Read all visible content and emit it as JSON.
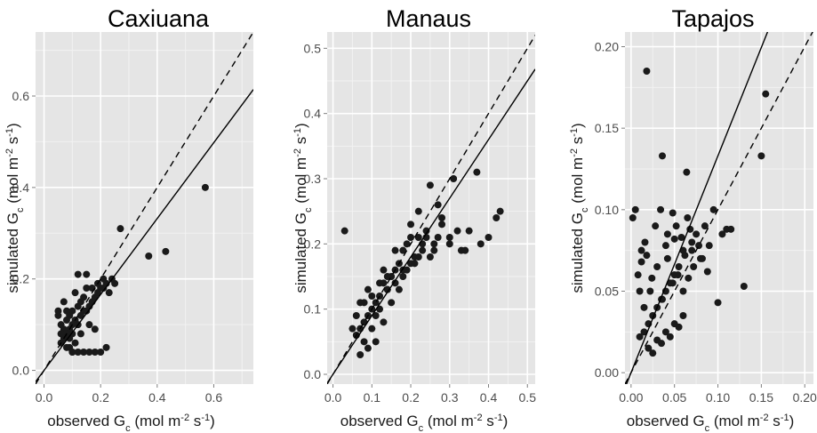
{
  "chart_data": [
    {
      "type": "scatter",
      "title": "Caxiuana",
      "xlabel": "observed G_c (mol m^-2 s^-1)",
      "ylabel": "simulated G_c (mol m^-2 s^-1)",
      "xlim": [
        -0.03,
        0.74
      ],
      "ylim": [
        -0.03,
        0.74
      ],
      "x_ticks": [
        0.0,
        0.2,
        0.4,
        0.6
      ],
      "x_tick_labels": [
        "0.0",
        "0.2",
        "0.4",
        "0.6"
      ],
      "y_ticks": [
        0.0,
        0.2,
        0.4,
        0.6
      ],
      "y_tick_labels": [
        "0.0",
        "0.2",
        "0.4",
        "0.6"
      ],
      "grid": true,
      "lines": [
        {
          "style": "dashed",
          "label": "1:1",
          "slope": 1.0,
          "intercept": 0.0
        },
        {
          "style": "solid",
          "label": "fit",
          "slope": 0.83,
          "intercept": 0.0
        }
      ],
      "x": [
        0.57,
        0.43,
        0.37,
        0.27,
        0.24,
        0.22,
        0.21,
        0.19,
        0.18,
        0.17,
        0.16,
        0.15,
        0.14,
        0.13,
        0.12,
        0.11,
        0.1,
        0.09,
        0.08,
        0.07,
        0.06,
        0.05,
        0.06,
        0.08,
        0.1,
        0.12,
        0.14,
        0.16,
        0.18,
        0.2,
        0.22,
        0.14,
        0.12,
        0.1,
        0.09,
        0.08,
        0.07,
        0.11,
        0.13,
        0.15,
        0.17,
        0.19,
        0.21,
        0.23,
        0.09,
        0.1,
        0.11,
        0.12,
        0.13,
        0.08,
        0.07,
        0.09,
        0.1,
        0.06,
        0.05,
        0.16,
        0.18,
        0.2,
        0.25,
        0.15
      ],
      "y": [
        0.4,
        0.26,
        0.25,
        0.31,
        0.2,
        0.19,
        0.18,
        0.17,
        0.16,
        0.15,
        0.14,
        0.18,
        0.13,
        0.12,
        0.21,
        0.11,
        0.1,
        0.09,
        0.08,
        0.07,
        0.1,
        0.12,
        0.06,
        0.05,
        0.04,
        0.04,
        0.04,
        0.04,
        0.04,
        0.04,
        0.05,
        0.16,
        0.14,
        0.13,
        0.12,
        0.11,
        0.09,
        0.17,
        0.15,
        0.13,
        0.18,
        0.19,
        0.2,
        0.17,
        0.07,
        0.08,
        0.06,
        0.1,
        0.08,
        0.13,
        0.15,
        0.05,
        0.04,
        0.08,
        0.13,
        0.1,
        0.09,
        0.18,
        0.19,
        0.21
      ]
    },
    {
      "type": "scatter",
      "title": "Manaus",
      "xlabel": "observed G_c (mol m^-2 s^-1)",
      "ylabel": "simulated G_c (mol m^-2 s^-1)",
      "xlim": [
        -0.015,
        0.52
      ],
      "ylim": [
        -0.015,
        0.525
      ],
      "x_ticks": [
        0.0,
        0.1,
        0.2,
        0.3,
        0.4,
        0.5
      ],
      "x_tick_labels": [
        "0.0",
        "0.1",
        "0.2",
        "0.3",
        "0.4",
        "0.5"
      ],
      "y_ticks": [
        0.0,
        0.1,
        0.2,
        0.3,
        0.4,
        0.5
      ],
      "y_tick_labels": [
        "0.0",
        "0.1",
        "0.2",
        "0.3",
        "0.4",
        "0.5"
      ],
      "grid": true,
      "lines": [
        {
          "style": "dashed",
          "label": "1:1",
          "slope": 1.0,
          "intercept": 0.0
        },
        {
          "style": "solid",
          "label": "fit",
          "slope": 0.9,
          "intercept": 0.0
        }
      ],
      "x": [
        0.03,
        0.37,
        0.42,
        0.43,
        0.4,
        0.38,
        0.35,
        0.33,
        0.31,
        0.3,
        0.28,
        0.27,
        0.26,
        0.25,
        0.24,
        0.23,
        0.22,
        0.21,
        0.2,
        0.19,
        0.18,
        0.17,
        0.16,
        0.15,
        0.14,
        0.13,
        0.12,
        0.11,
        0.1,
        0.09,
        0.08,
        0.07,
        0.06,
        0.2,
        0.22,
        0.24,
        0.26,
        0.28,
        0.3,
        0.32,
        0.34,
        0.18,
        0.16,
        0.14,
        0.12,
        0.1,
        0.08,
        0.07,
        0.09,
        0.11,
        0.13,
        0.15,
        0.17,
        0.19,
        0.21,
        0.23,
        0.25,
        0.27,
        0.1,
        0.12,
        0.14,
        0.08,
        0.09,
        0.11,
        0.13,
        0.06,
        0.07,
        0.05,
        0.16,
        0.18,
        0.2,
        0.22
      ],
      "y": [
        0.22,
        0.31,
        0.24,
        0.25,
        0.21,
        0.2,
        0.22,
        0.19,
        0.3,
        0.21,
        0.24,
        0.26,
        0.2,
        0.29,
        0.22,
        0.19,
        0.21,
        0.18,
        0.17,
        0.2,
        0.15,
        0.17,
        0.14,
        0.15,
        0.13,
        0.14,
        0.12,
        0.11,
        0.1,
        0.09,
        0.08,
        0.07,
        0.06,
        0.23,
        0.18,
        0.21,
        0.19,
        0.23,
        0.2,
        0.22,
        0.19,
        0.19,
        0.16,
        0.13,
        0.1,
        0.07,
        0.05,
        0.03,
        0.04,
        0.05,
        0.08,
        0.11,
        0.13,
        0.16,
        0.17,
        0.2,
        0.18,
        0.21,
        0.12,
        0.14,
        0.15,
        0.11,
        0.13,
        0.09,
        0.16,
        0.09,
        0.11,
        0.07,
        0.19,
        0.16,
        0.21,
        0.25
      ]
    },
    {
      "type": "scatter",
      "title": "Tapajos",
      "xlabel": "observed G_c (mol m^-2 s^-1)",
      "ylabel": "simulated G_c (mol m^-2 s^-1)",
      "xlim": [
        -0.007,
        0.21
      ],
      "ylim": [
        -0.007,
        0.209
      ],
      "x_ticks": [
        0.0,
        0.05,
        0.1,
        0.15,
        0.2
      ],
      "x_tick_labels": [
        "0.00",
        "0.05",
        "0.10",
        "0.15",
        "0.20"
      ],
      "y_ticks": [
        0.0,
        0.05,
        0.1,
        0.15,
        0.2
      ],
      "y_tick_labels": [
        "0.00",
        "0.05",
        "0.10",
        "0.15",
        "0.20"
      ],
      "grid": true,
      "lines": [
        {
          "style": "dashed",
          "label": "1:1",
          "slope": 1.0,
          "intercept": 0.0
        },
        {
          "style": "solid",
          "label": "fit",
          "slope": 1.33,
          "intercept": 0.0
        }
      ],
      "x": [
        0.018,
        0.036,
        0.064,
        0.155,
        0.15,
        0.13,
        0.115,
        0.11,
        0.105,
        0.1,
        0.095,
        0.09,
        0.085,
        0.08,
        0.075,
        0.07,
        0.065,
        0.06,
        0.055,
        0.05,
        0.045,
        0.04,
        0.035,
        0.03,
        0.025,
        0.02,
        0.015,
        0.01,
        0.005,
        0.002,
        0.008,
        0.012,
        0.016,
        0.022,
        0.028,
        0.034,
        0.042,
        0.048,
        0.052,
        0.058,
        0.062,
        0.068,
        0.072,
        0.078,
        0.082,
        0.088,
        0.02,
        0.03,
        0.04,
        0.05,
        0.06,
        0.025,
        0.035,
        0.045,
        0.055,
        0.015,
        0.01,
        0.012,
        0.018,
        0.024,
        0.03,
        0.036,
        0.042,
        0.048,
        0.054,
        0.06,
        0.066,
        0.07,
        0.05,
        0.04
      ],
      "y": [
        0.185,
        0.133,
        0.123,
        0.171,
        0.133,
        0.053,
        0.088,
        0.088,
        0.085,
        0.043,
        0.1,
        0.078,
        0.09,
        0.07,
        0.085,
        0.08,
        0.095,
        0.075,
        0.065,
        0.06,
        0.055,
        0.05,
        0.045,
        0.04,
        0.035,
        0.03,
        0.025,
        0.022,
        0.1,
        0.095,
        0.06,
        0.075,
        0.08,
        0.05,
        0.09,
        0.1,
        0.085,
        0.098,
        0.09,
        0.083,
        0.072,
        0.088,
        0.065,
        0.078,
        0.07,
        0.062,
        0.015,
        0.02,
        0.025,
        0.03,
        0.035,
        0.012,
        0.018,
        0.022,
        0.028,
        0.04,
        0.05,
        0.068,
        0.072,
        0.058,
        0.065,
        0.045,
        0.07,
        0.055,
        0.06,
        0.05,
        0.058,
        0.075,
        0.082,
        0.078
      ]
    }
  ]
}
